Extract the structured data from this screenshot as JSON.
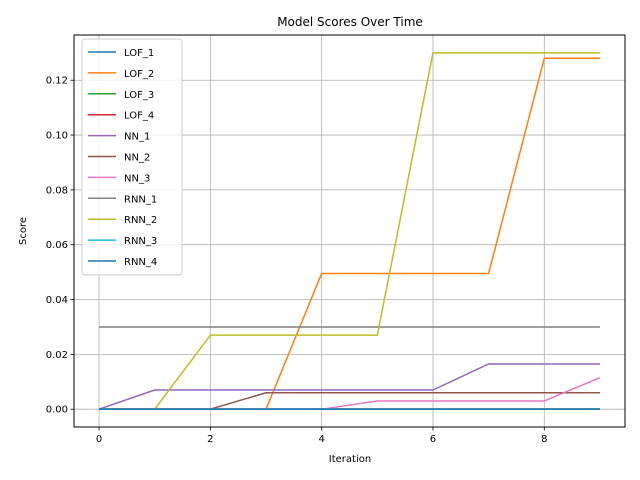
{
  "chart_data": {
    "type": "line",
    "title": "Model Scores Over Time",
    "xlabel": "Iteration",
    "ylabel": "Score",
    "xlim": [
      -0.45,
      9.45
    ],
    "ylim": [
      -0.0065,
      0.1365
    ],
    "xticks": [
      0,
      2,
      4,
      6,
      8
    ],
    "xtick_labels": [
      "0",
      "2",
      "4",
      "6",
      "8"
    ],
    "yticks": [
      0.0,
      0.02,
      0.04,
      0.06,
      0.08,
      0.1,
      0.12
    ],
    "ytick_labels": [
      "0.00",
      "0.02",
      "0.04",
      "0.06",
      "0.08",
      "0.10",
      "0.12"
    ],
    "grid": true,
    "legend_position": "upper-left",
    "x": [
      0,
      1,
      2,
      3,
      4,
      5,
      6,
      7,
      8,
      9
    ],
    "series": [
      {
        "name": "LOF_1",
        "color": "#1f77b4",
        "values": [
          0,
          0,
          0,
          0,
          0,
          0,
          0,
          0,
          0,
          0
        ]
      },
      {
        "name": "LOF_2",
        "color": "#ff7f0e",
        "values": [
          0,
          0,
          0,
          0,
          0.0495,
          0.0495,
          0.0495,
          0.0495,
          0.128,
          0.128
        ]
      },
      {
        "name": "LOF_3",
        "color": "#2ca02c",
        "values": [
          0,
          0,
          0,
          0,
          0,
          0,
          0,
          0,
          0,
          0
        ]
      },
      {
        "name": "LOF_4",
        "color": "#d62728",
        "values": [
          0,
          0,
          0,
          0,
          0,
          0,
          0,
          0,
          0,
          0
        ]
      },
      {
        "name": "NN_1",
        "color": "#9467bd",
        "values": [
          0,
          0.007,
          0.007,
          0.007,
          0.007,
          0.007,
          0.007,
          0.0165,
          0.0165,
          0.0165
        ]
      },
      {
        "name": "NN_2",
        "color": "#8c564b",
        "values": [
          0,
          0,
          0,
          0.006,
          0.006,
          0.006,
          0.006,
          0.006,
          0.006,
          0.006
        ]
      },
      {
        "name": "NN_3",
        "color": "#e377c2",
        "values": [
          0,
          0,
          0,
          0,
          0,
          0.003,
          0.003,
          0.003,
          0.003,
          0.0115
        ]
      },
      {
        "name": "RNN_1",
        "color": "#7f7f7f",
        "values": [
          0.03,
          0.03,
          0.03,
          0.03,
          0.03,
          0.03,
          0.03,
          0.03,
          0.03,
          0.03
        ]
      },
      {
        "name": "RNN_2",
        "color": "#bcbd22",
        "values": [
          0,
          0,
          0.027,
          0.027,
          0.027,
          0.027,
          0.13,
          0.13,
          0.13,
          0.13
        ]
      },
      {
        "name": "RNN_3",
        "color": "#17becf",
        "values": [
          0,
          0,
          0,
          0,
          0,
          0,
          0,
          0,
          0,
          0
        ]
      },
      {
        "name": "RNN_4",
        "color": "#1f77b4",
        "values": [
          0,
          0,
          0,
          0,
          0,
          0,
          0,
          0,
          0,
          0
        ]
      }
    ]
  }
}
